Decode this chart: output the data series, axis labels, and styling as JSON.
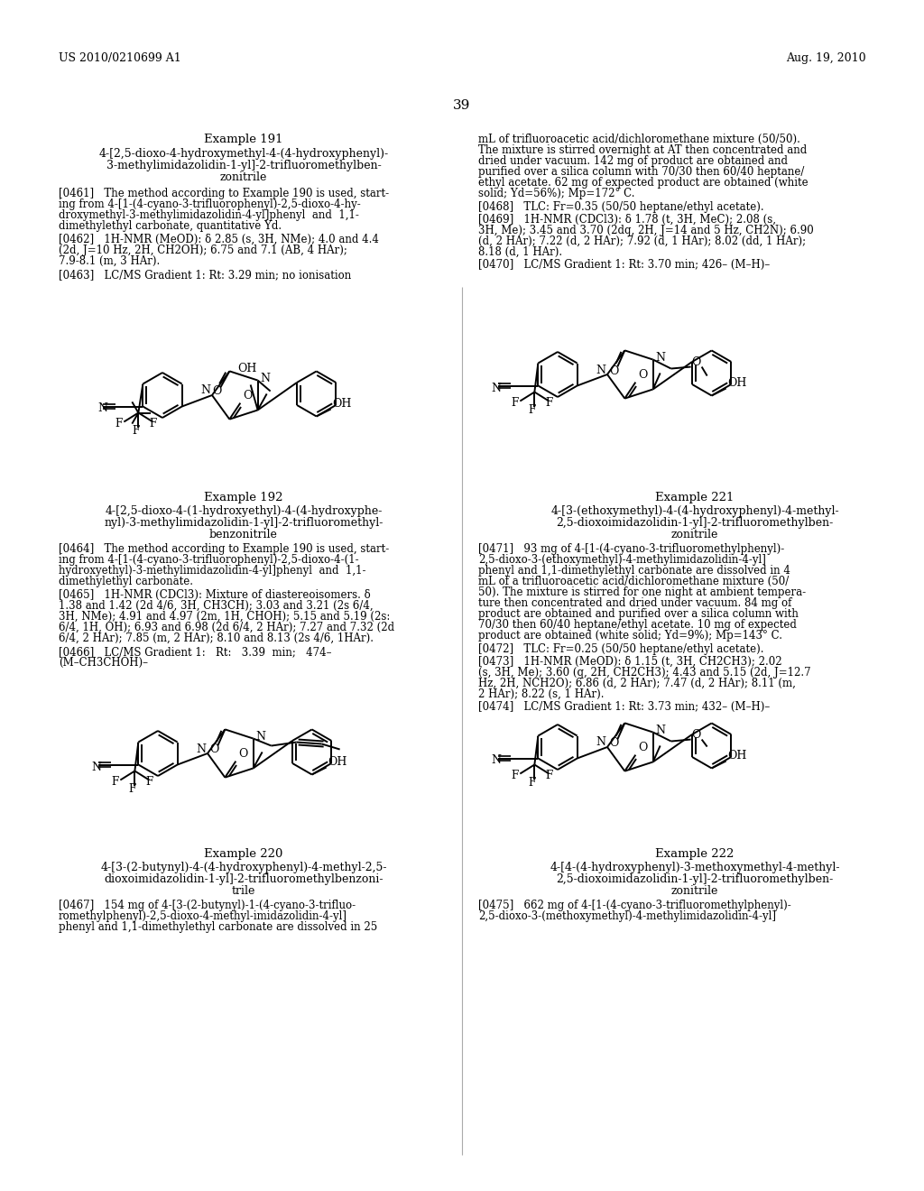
{
  "header_left": "US 2010/0210699 A1",
  "header_right": "Aug. 19, 2010",
  "page_num": "39",
  "bg": "#ffffff",
  "fg": "#000000"
}
